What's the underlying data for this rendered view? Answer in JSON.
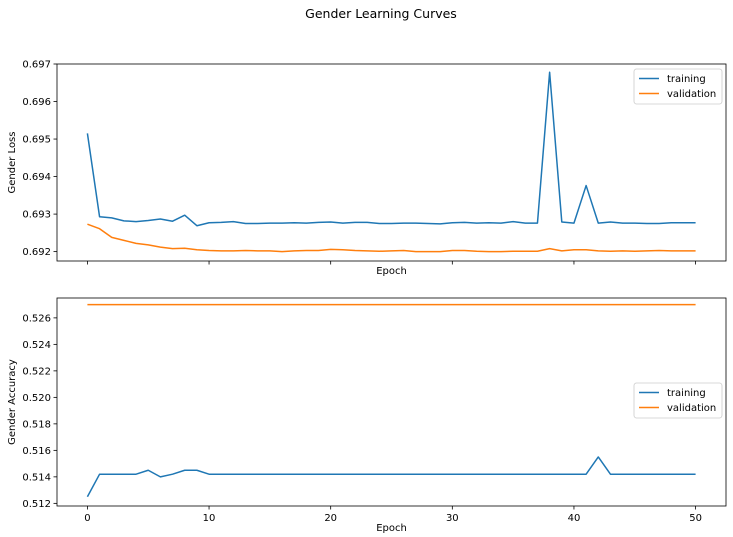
{
  "figure_title": "Gender Learning Curves",
  "chart_data": [
    {
      "type": "line",
      "title": "",
      "xlabel": "Epoch",
      "ylabel": "Gender Loss",
      "xlim": [
        -2.5,
        52.5
      ],
      "ylim": [
        0.69175,
        0.697
      ],
      "x_ticks": [
        0,
        10,
        20,
        30,
        40,
        50
      ],
      "x_tick_labels_shown": false,
      "y_ticks": [
        0.692,
        0.693,
        0.694,
        0.695,
        0.696,
        0.697
      ],
      "y_tick_labels": [
        "0.692",
        "0.693",
        "0.694",
        "0.695",
        "0.696",
        "0.697"
      ],
      "grid": false,
      "legend": "top-right",
      "series": [
        {
          "name": "training",
          "color": "#1f77b4",
          "x": [
            0,
            1,
            2,
            3,
            4,
            5,
            6,
            7,
            8,
            9,
            10,
            11,
            12,
            13,
            14,
            15,
            16,
            17,
            18,
            19,
            20,
            21,
            22,
            23,
            24,
            25,
            26,
            27,
            28,
            29,
            30,
            31,
            32,
            33,
            34,
            35,
            36,
            37,
            38,
            39,
            40,
            41,
            42,
            43,
            44,
            45,
            46,
            47,
            48,
            49,
            50
          ],
          "values": [
            0.69515,
            0.69293,
            0.6929,
            0.69282,
            0.6928,
            0.69283,
            0.69287,
            0.69281,
            0.69297,
            0.69269,
            0.69277,
            0.69278,
            0.6928,
            0.69275,
            0.69275,
            0.69276,
            0.69276,
            0.69277,
            0.69276,
            0.69278,
            0.69279,
            0.69276,
            0.69278,
            0.69278,
            0.69275,
            0.69275,
            0.69276,
            0.69276,
            0.69275,
            0.69274,
            0.69277,
            0.69278,
            0.69276,
            0.69277,
            0.69276,
            0.6928,
            0.69276,
            0.69276,
            0.69678,
            0.69279,
            0.69276,
            0.69376,
            0.69276,
            0.69279,
            0.69276,
            0.69276,
            0.69275,
            0.69275,
            0.69277,
            0.69277,
            0.69277
          ]
        },
        {
          "name": "validation",
          "color": "#ff7f0e",
          "x": [
            0,
            1,
            2,
            3,
            4,
            5,
            6,
            7,
            8,
            9,
            10,
            11,
            12,
            13,
            14,
            15,
            16,
            17,
            18,
            19,
            20,
            21,
            22,
            23,
            24,
            25,
            26,
            27,
            28,
            29,
            30,
            31,
            32,
            33,
            34,
            35,
            36,
            37,
            38,
            39,
            40,
            41,
            42,
            43,
            44,
            45,
            46,
            47,
            48,
            49,
            50
          ],
          "values": [
            0.69273,
            0.69261,
            0.69238,
            0.6923,
            0.69222,
            0.69218,
            0.69212,
            0.69208,
            0.69209,
            0.69205,
            0.69203,
            0.69202,
            0.69202,
            0.69203,
            0.69202,
            0.69202,
            0.692,
            0.69202,
            0.69203,
            0.69203,
            0.69206,
            0.69205,
            0.69203,
            0.69202,
            0.69201,
            0.69202,
            0.69203,
            0.692,
            0.692,
            0.692,
            0.69203,
            0.69203,
            0.69201,
            0.692,
            0.692,
            0.69201,
            0.69201,
            0.69201,
            0.69208,
            0.69202,
            0.69205,
            0.69205,
            0.69202,
            0.69201,
            0.69202,
            0.69201,
            0.69202,
            0.69203,
            0.69202,
            0.69202,
            0.69202
          ]
        }
      ]
    },
    {
      "type": "line",
      "title": "",
      "xlabel": "Epoch",
      "ylabel": "Gender Accuracy",
      "xlim": [
        -2.5,
        52.5
      ],
      "ylim": [
        0.5118,
        0.5275
      ],
      "x_ticks": [
        0,
        10,
        20,
        30,
        40,
        50
      ],
      "x_tick_labels": [
        "0",
        "10",
        "20",
        "30",
        "40",
        "50"
      ],
      "y_ticks": [
        0.512,
        0.514,
        0.516,
        0.518,
        0.52,
        0.522,
        0.524,
        0.526
      ],
      "y_tick_labels": [
        "0.512",
        "0.514",
        "0.516",
        "0.518",
        "0.520",
        "0.522",
        "0.524",
        "0.526"
      ],
      "grid": false,
      "legend": "center-right",
      "series": [
        {
          "name": "training",
          "color": "#1f77b4",
          "x": [
            0,
            1,
            2,
            3,
            4,
            5,
            6,
            7,
            8,
            9,
            10,
            11,
            12,
            13,
            14,
            15,
            16,
            17,
            18,
            19,
            20,
            21,
            22,
            23,
            24,
            25,
            26,
            27,
            28,
            29,
            30,
            31,
            32,
            33,
            34,
            35,
            36,
            37,
            38,
            39,
            40,
            41,
            42,
            43,
            44,
            45,
            46,
            47,
            48,
            49,
            50
          ],
          "values": [
            0.5125,
            0.5142,
            0.5142,
            0.5142,
            0.5142,
            0.5145,
            0.514,
            0.5142,
            0.5145,
            0.5145,
            0.5142,
            0.5142,
            0.5142,
            0.5142,
            0.5142,
            0.5142,
            0.5142,
            0.5142,
            0.5142,
            0.5142,
            0.5142,
            0.5142,
            0.5142,
            0.5142,
            0.5142,
            0.5142,
            0.5142,
            0.5142,
            0.5142,
            0.5142,
            0.5142,
            0.5142,
            0.5142,
            0.5142,
            0.5142,
            0.5142,
            0.5142,
            0.5142,
            0.5142,
            0.5142,
            0.5142,
            0.5142,
            0.5155,
            0.5142,
            0.5142,
            0.5142,
            0.5142,
            0.5142,
            0.5142,
            0.5142,
            0.5142
          ]
        },
        {
          "name": "validation",
          "color": "#ff7f0e",
          "x": [
            0,
            50
          ],
          "values": [
            0.527,
            0.527
          ]
        }
      ]
    }
  ]
}
